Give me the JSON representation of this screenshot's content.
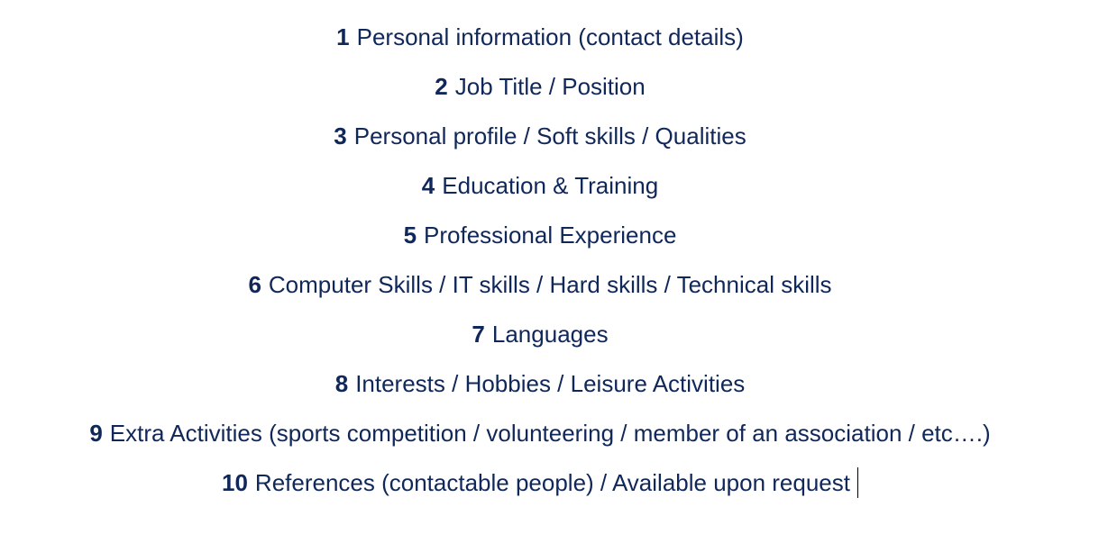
{
  "sections": [
    {
      "number": "1",
      "text": "Personal information (contact details)"
    },
    {
      "number": "2",
      "text": "Job Title / Position"
    },
    {
      "number": "3",
      "text": "Personal profile / Soft skills / Qualities"
    },
    {
      "number": "4",
      "text": "Education & Training"
    },
    {
      "number": "5",
      "text": "Professional Experience"
    },
    {
      "number": "6",
      "text": "Computer Skills / IT skills / Hard skills / Technical skills"
    },
    {
      "number": "7",
      "text": "Languages"
    },
    {
      "number": "8",
      "text": "Interests / Hobbies / Leisure Activities"
    },
    {
      "number": "9",
      "text": "Extra Activities (sports competition / volunteering / member of an association / etc….)"
    },
    {
      "number": "10",
      "text": "References (contactable people) / Available upon request"
    }
  ],
  "colors": {
    "text": "#10275a",
    "background": "#ffffff"
  }
}
